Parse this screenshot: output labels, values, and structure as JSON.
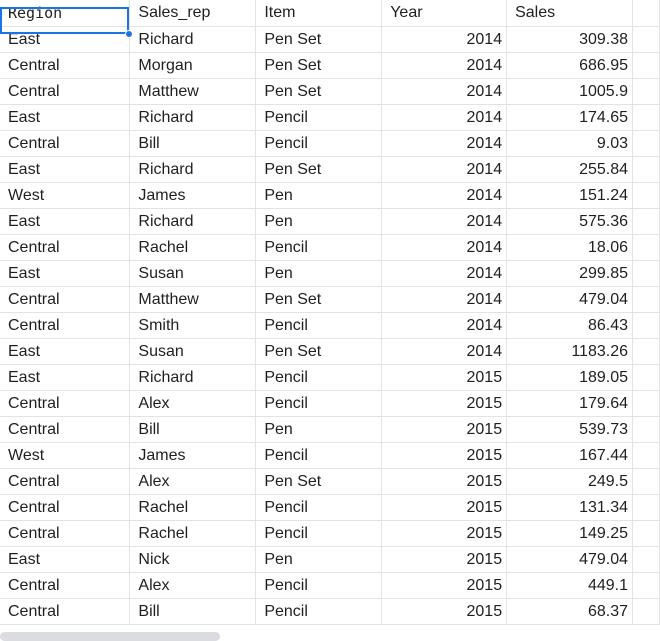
{
  "columns": [
    "Region",
    "Sales_rep",
    "Item",
    "Year",
    "Sales"
  ],
  "rows": [
    [
      "East",
      "Richard",
      "Pen Set",
      "2014",
      "309.38"
    ],
    [
      "Central",
      "Morgan",
      "Pen Set",
      "2014",
      "686.95"
    ],
    [
      "Central",
      "Matthew",
      "Pen Set",
      "2014",
      "1005.9"
    ],
    [
      "East",
      "Richard",
      "Pencil",
      "2014",
      "174.65"
    ],
    [
      "Central",
      "Bill",
      "Pencil",
      "2014",
      "9.03"
    ],
    [
      "East",
      "Richard",
      "Pen Set",
      "2014",
      "255.84"
    ],
    [
      "West",
      "James",
      "Pen",
      "2014",
      "151.24"
    ],
    [
      "East",
      "Richard",
      "Pen",
      "2014",
      "575.36"
    ],
    [
      "Central",
      "Rachel",
      "Pencil",
      "2014",
      "18.06"
    ],
    [
      "East",
      "Susan",
      "Pen",
      "2014",
      "299.85"
    ],
    [
      "Central",
      "Matthew",
      "Pen Set",
      "2014",
      "479.04"
    ],
    [
      "Central",
      "Smith",
      "Pencil",
      "2014",
      "86.43"
    ],
    [
      "East",
      "Susan",
      "Pen Set",
      "2014",
      "1183.26"
    ],
    [
      "East",
      "Richard",
      "Pencil",
      "2015",
      "189.05"
    ],
    [
      "Central",
      "Alex",
      "Pencil",
      "2015",
      "179.64"
    ],
    [
      "Central",
      "Bill",
      "Pen",
      "2015",
      "539.73"
    ],
    [
      "West",
      "James",
      "Pencil",
      "2015",
      "167.44"
    ],
    [
      "Central",
      "Alex",
      "Pen Set",
      "2015",
      "249.5"
    ],
    [
      "Central",
      "Rachel",
      "Pencil",
      "2015",
      "131.34"
    ],
    [
      "Central",
      "Rachel",
      "Pencil",
      "2015",
      "149.25"
    ],
    [
      "East",
      "Nick",
      "Pen",
      "2015",
      "479.04"
    ],
    [
      "Central",
      "Alex",
      "Pencil",
      "2015",
      "449.1"
    ],
    [
      "Central",
      "Bill",
      "Pencil",
      "2015",
      "68.37"
    ]
  ],
  "selection_color": "#1a73e8",
  "gridline_color": "#e2e3e3"
}
